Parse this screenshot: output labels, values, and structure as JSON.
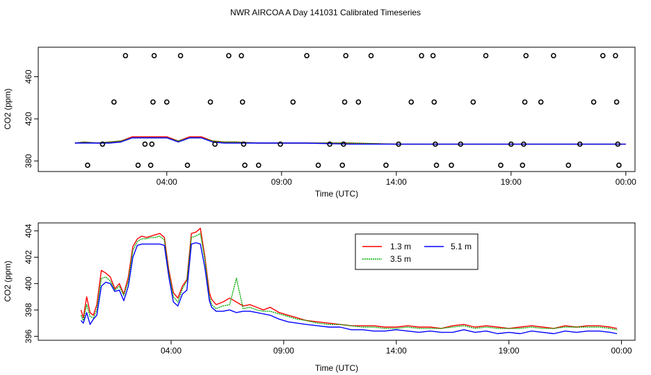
{
  "figure": {
    "title": "NWR AIRCOA A  Day 141031  Calibrated Timeseries"
  },
  "chart_data": [
    {
      "type": "scatter",
      "xlabel": "Time (UTC)",
      "ylabel": "CO2 (ppm)",
      "xlim": [
        -1.6,
        24.4
      ],
      "ylim": [
        370,
        488
      ],
      "x_ticks": [
        {
          "value": 4,
          "label": "04:00"
        },
        {
          "value": 9,
          "label": "09:00"
        },
        {
          "value": 14,
          "label": "14:00"
        },
        {
          "value": 19,
          "label": "19:00"
        },
        {
          "value": 24,
          "label": "00:00"
        }
      ],
      "y_ticks": [
        {
          "value": 380,
          "label": "380"
        },
        {
          "value": 420,
          "label": "420"
        },
        {
          "value": 460,
          "label": "460"
        }
      ],
      "points": [
        [
          0.55,
          376
        ],
        [
          1.2,
          396
        ],
        [
          1.7,
          436
        ],
        [
          2.2,
          480
        ],
        [
          2.75,
          376
        ],
        [
          3.05,
          396
        ],
        [
          3.3,
          376
        ],
        [
          3.35,
          396
        ],
        [
          3.4,
          436
        ],
        [
          3.45,
          480
        ],
        [
          4.0,
          436
        ],
        [
          4.6,
          480
        ],
        [
          4.9,
          376
        ],
        [
          5.9,
          436
        ],
        [
          6.1,
          396
        ],
        [
          6.7,
          480
        ],
        [
          7.25,
          480
        ],
        [
          7.3,
          436
        ],
        [
          7.35,
          396
        ],
        [
          7.4,
          376
        ],
        [
          8.0,
          376
        ],
        [
          8.95,
          396
        ],
        [
          9.5,
          436
        ],
        [
          10.1,
          480
        ],
        [
          10.6,
          376
        ],
        [
          11.1,
          396
        ],
        [
          11.65,
          376
        ],
        [
          11.7,
          396
        ],
        [
          11.75,
          436
        ],
        [
          11.8,
          480
        ],
        [
          12.35,
          436
        ],
        [
          12.9,
          480
        ],
        [
          13.55,
          376
        ],
        [
          14.1,
          396
        ],
        [
          14.65,
          436
        ],
        [
          15.1,
          480
        ],
        [
          15.6,
          480
        ],
        [
          15.65,
          436
        ],
        [
          15.7,
          396
        ],
        [
          15.75,
          376
        ],
        [
          16.4,
          376
        ],
        [
          16.8,
          396
        ],
        [
          17.35,
          436
        ],
        [
          17.9,
          480
        ],
        [
          18.55,
          376
        ],
        [
          19.0,
          396
        ],
        [
          19.5,
          376
        ],
        [
          19.55,
          396
        ],
        [
          19.6,
          436
        ],
        [
          19.65,
          480
        ],
        [
          20.3,
          436
        ],
        [
          20.85,
          480
        ],
        [
          21.5,
          376
        ],
        [
          22.0,
          396
        ],
        [
          22.6,
          436
        ],
        [
          23.0,
          480
        ],
        [
          23.55,
          480
        ],
        [
          23.6,
          436
        ],
        [
          23.65,
          396
        ],
        [
          23.7,
          376
        ]
      ],
      "series": [
        {
          "name": "1.3 m",
          "color": "#ff0000",
          "x": [
            0.0,
            0.4,
            1.0,
            1.5,
            2.0,
            2.5,
            3.0,
            3.5,
            4.0,
            4.5,
            5.0,
            5.5,
            6.0,
            6.5,
            7.0,
            8.0,
            10.0,
            12.0,
            14.0,
            16.0,
            18.0,
            20.0,
            22.0,
            23.5,
            24.0
          ],
          "y": [
            397,
            398,
            397,
            398,
            399,
            403,
            403,
            403,
            403,
            399,
            403,
            403,
            399,
            398,
            398,
            397,
            397,
            397,
            396,
            396,
            396,
            396,
            396,
            396,
            396
          ]
        },
        {
          "name": "3.5 m",
          "color": "#00aa00",
          "x": [
            0.0,
            0.4,
            1.0,
            1.5,
            2.0,
            2.5,
            3.0,
            3.5,
            4.0,
            4.5,
            5.0,
            5.5,
            6.0,
            6.5,
            7.0,
            8.0,
            10.0,
            12.0,
            14.0,
            16.0,
            18.0,
            20.0,
            22.0,
            23.5,
            24.0
          ],
          "y": [
            397,
            398,
            397,
            398,
            399,
            402,
            402,
            402,
            402,
            399,
            402,
            402,
            399,
            398,
            398,
            397,
            397,
            397,
            396,
            396,
            396,
            396,
            396,
            396,
            396
          ]
        },
        {
          "name": "5.1 m",
          "color": "#0000ff",
          "x": [
            0.0,
            0.4,
            1.0,
            1.5,
            2.0,
            2.5,
            3.0,
            3.5,
            4.0,
            4.5,
            5.0,
            5.5,
            6.0,
            6.5,
            7.0,
            8.0,
            10.0,
            12.0,
            14.0,
            16.0,
            18.0,
            20.0,
            22.0,
            23.5,
            24.0
          ],
          "y": [
            397,
            397,
            397,
            397,
            398,
            402,
            402,
            402,
            402,
            398,
            402,
            402,
            398,
            397,
            397,
            397,
            397,
            396,
            396,
            396,
            396,
            396,
            396,
            396,
            396
          ]
        }
      ]
    },
    {
      "type": "line",
      "xlabel": "Time (UTC)",
      "ylabel": "CO2 (ppm)",
      "xlim": [
        -1.9,
        24.6
      ],
      "ylim": [
        395.7,
        404.6
      ],
      "x_ticks": [
        {
          "value": 4,
          "label": "04:00"
        },
        {
          "value": 9,
          "label": "09:00"
        },
        {
          "value": 14,
          "label": "14:00"
        },
        {
          "value": 19,
          "label": "19:00"
        },
        {
          "value": 24,
          "label": "00:00"
        }
      ],
      "y_ticks": [
        {
          "value": 396,
          "label": "396"
        },
        {
          "value": 398,
          "label": "398"
        },
        {
          "value": 400,
          "label": "400"
        },
        {
          "value": 402,
          "label": "402"
        },
        {
          "value": 404,
          "label": "404"
        }
      ],
      "legend": {
        "position": "top-center"
      },
      "series": [
        {
          "name": "1.3 m",
          "color": "#ff0000",
          "x": [
            0.0,
            0.1,
            0.25,
            0.4,
            0.55,
            0.7,
            0.9,
            1.1,
            1.3,
            1.5,
            1.7,
            1.9,
            2.1,
            2.3,
            2.5,
            2.7,
            2.9,
            3.1,
            3.3,
            3.5,
            3.7,
            3.9,
            4.1,
            4.3,
            4.5,
            4.7,
            4.9,
            5.1,
            5.3,
            5.5,
            5.7,
            5.8,
            6.0,
            6.3,
            6.6,
            6.9,
            7.2,
            7.5,
            7.8,
            8.1,
            8.4,
            8.8,
            9.2,
            9.6,
            10.0,
            10.5,
            11.0,
            11.5,
            12.0,
            12.5,
            13.0,
            13.5,
            14.0,
            14.5,
            15.0,
            15.5,
            16.0,
            16.5,
            17.0,
            17.5,
            18.0,
            18.5,
            19.0,
            19.5,
            20.0,
            20.5,
            21.0,
            21.5,
            22.0,
            22.5,
            23.0,
            23.5,
            23.8
          ],
          "y": [
            398.0,
            397.4,
            399.0,
            397.8,
            397.6,
            398.4,
            401.0,
            400.8,
            400.5,
            399.6,
            400.0,
            399.2,
            400.5,
            402.8,
            403.4,
            403.6,
            403.5,
            403.6,
            403.7,
            403.8,
            403.5,
            401.0,
            399.3,
            398.9,
            399.8,
            400.3,
            403.8,
            403.9,
            404.2,
            402.0,
            399.3,
            398.8,
            398.4,
            398.6,
            398.9,
            398.6,
            398.3,
            398.4,
            398.2,
            398.0,
            398.2,
            397.8,
            397.6,
            397.4,
            397.2,
            397.1,
            397.0,
            396.9,
            396.8,
            396.8,
            396.8,
            396.7,
            396.7,
            396.8,
            396.7,
            396.7,
            396.6,
            396.8,
            396.9,
            396.7,
            396.8,
            396.7,
            396.6,
            396.7,
            396.8,
            396.7,
            396.6,
            396.8,
            396.7,
            396.8,
            396.8,
            396.7,
            396.6
          ]
        },
        {
          "name": "3.5 m",
          "color": "#00aa00",
          "x": [
            0.0,
            0.1,
            0.25,
            0.4,
            0.55,
            0.7,
            0.9,
            1.1,
            1.3,
            1.5,
            1.7,
            1.9,
            2.1,
            2.3,
            2.5,
            2.7,
            2.9,
            3.1,
            3.3,
            3.5,
            3.7,
            3.9,
            4.1,
            4.3,
            4.5,
            4.7,
            4.9,
            5.1,
            5.3,
            5.5,
            5.7,
            5.8,
            6.0,
            6.3,
            6.6,
            6.9,
            7.2,
            7.5,
            7.8,
            8.1,
            8.4,
            8.8,
            9.2,
            9.6,
            10.0,
            10.5,
            11.0,
            11.5,
            12.0,
            12.5,
            13.0,
            13.5,
            14.0,
            14.5,
            15.0,
            15.5,
            16.0,
            16.5,
            17.0,
            17.5,
            18.0,
            18.5,
            19.0,
            19.5,
            20.0,
            20.5,
            21.0,
            21.5,
            22.0,
            22.5,
            23.0,
            23.5,
            23.8
          ],
          "y": [
            397.6,
            397.2,
            398.4,
            397.5,
            397.4,
            398.0,
            400.4,
            400.5,
            400.2,
            399.5,
            399.8,
            399.1,
            400.2,
            402.5,
            403.2,
            403.4,
            403.4,
            403.5,
            403.5,
            403.6,
            403.3,
            400.8,
            399.0,
            398.6,
            399.6,
            400.2,
            403.5,
            403.6,
            403.8,
            401.8,
            399.0,
            398.4,
            398.1,
            398.3,
            398.4,
            400.4,
            398.1,
            398.2,
            398.0,
            397.9,
            397.9,
            397.7,
            397.5,
            397.3,
            397.2,
            397.0,
            396.9,
            396.9,
            396.8,
            396.7,
            396.7,
            396.6,
            396.6,
            396.7,
            396.6,
            396.6,
            396.6,
            396.7,
            396.8,
            396.6,
            396.7,
            396.6,
            396.6,
            396.6,
            396.7,
            396.6,
            396.6,
            396.7,
            396.7,
            396.7,
            396.7,
            396.6,
            396.5
          ]
        },
        {
          "name": "5.1 m",
          "color": "#0000ff",
          "x": [
            0.0,
            0.1,
            0.25,
            0.4,
            0.55,
            0.7,
            0.9,
            1.1,
            1.3,
            1.5,
            1.7,
            1.9,
            2.1,
            2.3,
            2.5,
            2.7,
            2.9,
            3.1,
            3.3,
            3.5,
            3.7,
            3.9,
            4.1,
            4.3,
            4.5,
            4.7,
            4.9,
            5.1,
            5.3,
            5.5,
            5.7,
            5.8,
            6.0,
            6.3,
            6.6,
            6.9,
            7.2,
            7.5,
            7.8,
            8.1,
            8.4,
            8.8,
            9.2,
            9.6,
            10.0,
            10.5,
            11.0,
            11.5,
            12.0,
            12.5,
            13.0,
            13.5,
            14.0,
            14.5,
            15.0,
            15.5,
            16.0,
            16.5,
            17.0,
            17.5,
            18.0,
            18.5,
            19.0,
            19.5,
            20.0,
            20.5,
            21.0,
            21.5,
            22.0,
            22.5,
            23.0,
            23.5,
            23.8
          ],
          "y": [
            397.2,
            397.0,
            397.8,
            396.9,
            397.3,
            397.6,
            399.8,
            400.1,
            400.0,
            399.4,
            399.5,
            398.7,
            399.8,
            402.0,
            402.9,
            403.0,
            403.0,
            403.0,
            403.0,
            403.0,
            402.9,
            400.5,
            398.6,
            398.3,
            399.2,
            399.5,
            403.0,
            403.1,
            403.0,
            401.2,
            398.7,
            398.2,
            397.9,
            397.9,
            398.0,
            397.8,
            397.9,
            397.9,
            397.8,
            397.7,
            397.6,
            397.3,
            397.1,
            397.0,
            396.9,
            396.8,
            396.7,
            396.7,
            396.5,
            396.5,
            396.4,
            396.4,
            396.5,
            396.4,
            396.3,
            396.4,
            396.3,
            396.3,
            396.5,
            396.3,
            396.4,
            396.2,
            396.3,
            396.2,
            396.4,
            396.3,
            396.2,
            396.4,
            396.3,
            396.4,
            396.4,
            396.3,
            396.2
          ]
        }
      ]
    }
  ]
}
